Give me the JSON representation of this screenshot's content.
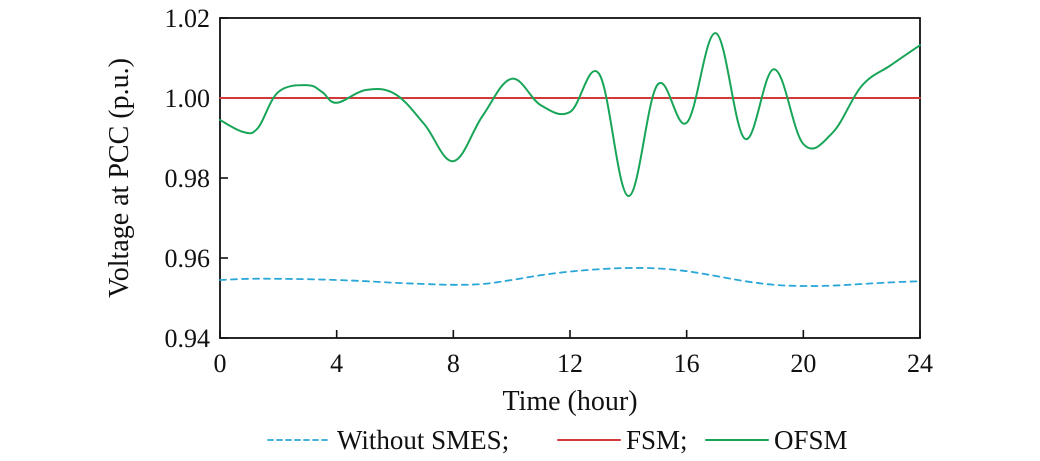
{
  "chart_data": {
    "type": "line",
    "xlabel": "Time (hour)",
    "ylabel": "Voltage at PCC (p.u.)",
    "xlim": [
      0,
      24
    ],
    "ylim": [
      0.94,
      1.02
    ],
    "xticks": [
      "0",
      "4",
      "8",
      "12",
      "16",
      "20",
      "24"
    ],
    "yticks": [
      "0.94",
      "0.96",
      "0.98",
      "1.00",
      "1.02"
    ],
    "grid": false,
    "legend_position": "bottom",
    "series": [
      {
        "name": "Without SMES;",
        "color": "#2aa7d6",
        "style": "dashed",
        "points": [
          [
            0,
            0.9545
          ],
          [
            1,
            0.9548
          ],
          [
            2,
            0.9548
          ],
          [
            3,
            0.9547
          ],
          [
            4,
            0.9545
          ],
          [
            5,
            0.9542
          ],
          [
            6,
            0.9538
          ],
          [
            7,
            0.9535
          ],
          [
            8,
            0.9533
          ],
          [
            9,
            0.9535
          ],
          [
            10,
            0.9545
          ],
          [
            11,
            0.9557
          ],
          [
            12,
            0.9566
          ],
          [
            13,
            0.9572
          ],
          [
            14,
            0.9575
          ],
          [
            15,
            0.9574
          ],
          [
            16,
            0.9567
          ],
          [
            17,
            0.9555
          ],
          [
            18,
            0.9542
          ],
          [
            19,
            0.9533
          ],
          [
            20,
            0.953
          ],
          [
            21,
            0.9531
          ],
          [
            22,
            0.9535
          ],
          [
            23,
            0.9539
          ],
          [
            24,
            0.9542
          ]
        ]
      },
      {
        "name": "FSM;",
        "color": "#d23a3a",
        "style": "solid",
        "points": [
          [
            0,
            1.0
          ],
          [
            24,
            1.0
          ]
        ]
      },
      {
        "name": "OFSM",
        "color": "#18a558",
        "style": "solid",
        "points": [
          [
            0,
            0.9945
          ],
          [
            0.8,
            0.9915
          ],
          [
            1.3,
            0.9925
          ],
          [
            2,
            1.0015
          ],
          [
            3,
            1.0032
          ],
          [
            3.5,
            1.0015
          ],
          [
            4,
            0.9988
          ],
          [
            5,
            1.002
          ],
          [
            6,
            1.001
          ],
          [
            7,
            0.9935
          ],
          [
            8,
            0.9842
          ],
          [
            9,
            0.9955
          ],
          [
            10,
            1.0048
          ],
          [
            11,
            0.9982
          ],
          [
            12,
            0.9965
          ],
          [
            13,
            1.006
          ],
          [
            14,
            0.9755
          ],
          [
            15,
            1.0033
          ],
          [
            16,
            0.9938
          ],
          [
            17,
            1.0162
          ],
          [
            18,
            0.9898
          ],
          [
            19,
            1.0072
          ],
          [
            20,
            0.9885
          ],
          [
            21,
            0.9913
          ],
          [
            22,
            1.003
          ],
          [
            23,
            1.0082
          ],
          [
            24,
            1.0132
          ]
        ]
      }
    ]
  }
}
